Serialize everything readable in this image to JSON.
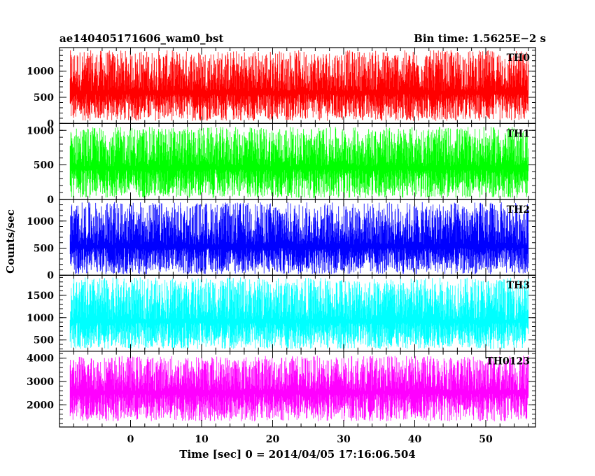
{
  "chart_data": {
    "type": "line",
    "title_left": "ae140405171606_wam0_bst",
    "title_right": "Bin time: 1.5625E−2 s",
    "xlabel": "Time [sec] 0 = 2014/04/05 17:16:06.504",
    "ylabel": "Counts/sec",
    "xlim": [
      -10,
      57
    ],
    "x_data_range": [
      -8.5,
      56
    ],
    "x_ticks": [
      "0",
      "10",
      "20",
      "30",
      "40",
      "50"
    ],
    "x_tick_values": [
      0,
      10,
      20,
      30,
      40,
      50
    ],
    "grid": false,
    "panels": [
      {
        "name": "TH0",
        "color": "#ff0000",
        "ylim": [
          0,
          1450
        ],
        "y_ticks": [
          "0",
          "500",
          "1000"
        ],
        "y_tick_values": [
          0,
          500,
          1000
        ],
        "typical_range": [
          50,
          1400
        ],
        "mean": 620
      },
      {
        "name": "TH1",
        "color": "#00ff00",
        "ylim": [
          0,
          1100
        ],
        "y_ticks": [
          "0",
          "500",
          "1000"
        ],
        "y_tick_values": [
          0,
          500,
          1000
        ],
        "typical_range": [
          20,
          1050
        ],
        "mean": 480
      },
      {
        "name": "TH2",
        "color": "#0000ff",
        "ylim": [
          0,
          1400
        ],
        "y_ticks": [
          "0",
          "500",
          "1000"
        ],
        "y_tick_values": [
          0,
          500,
          1000
        ],
        "typical_range": [
          20,
          1350
        ],
        "mean": 560
      },
      {
        "name": "TH3",
        "color": "#00ffff",
        "ylim": [
          250,
          1950
        ],
        "y_ticks": [
          "500",
          "1000",
          "1500"
        ],
        "y_tick_values": [
          500,
          1000,
          1500
        ],
        "typical_range": [
          300,
          1900
        ],
        "mean": 950
      },
      {
        "name": "TH0123",
        "color": "#ff00ff",
        "ylim": [
          1050,
          4300
        ],
        "y_ticks": [
          "2000",
          "3000",
          "4000"
        ],
        "y_tick_values": [
          2000,
          3000,
          4000
        ],
        "typical_range": [
          1300,
          4100
        ],
        "mean": 2600
      }
    ]
  }
}
